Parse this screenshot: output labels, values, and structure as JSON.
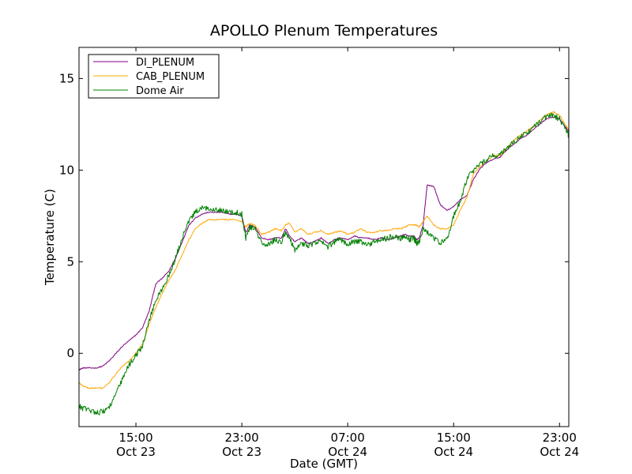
{
  "chart_data": {
    "type": "line",
    "title": "APOLLO Plenum Temperatures",
    "xlabel": "Date (GMT)",
    "ylabel": "Temperature (C)",
    "xlim": [
      10.7,
      47.7
    ],
    "ylim": [
      -4,
      16.7
    ],
    "yticks": [
      {
        "value": 0,
        "label": "0"
      },
      {
        "value": 5,
        "label": "5"
      },
      {
        "value": 10,
        "label": "10"
      },
      {
        "value": 15,
        "label": "15"
      }
    ],
    "xticks": [
      {
        "value": 15,
        "time": "15:00",
        "date": "Oct 23"
      },
      {
        "value": 23,
        "time": "23:00",
        "date": "Oct 23"
      },
      {
        "value": 31,
        "time": "07:00",
        "date": "Oct 24"
      },
      {
        "value": 39,
        "time": "15:00",
        "date": "Oct 24"
      },
      {
        "value": 47,
        "time": "23:00",
        "date": "Oct 24"
      }
    ],
    "legend_position": "top-left",
    "series": [
      {
        "name": "DI_PLENUM",
        "color": "#800080",
        "x": [
          10.7,
          11.0,
          11.5,
          12.0,
          12.5,
          13.0,
          13.5,
          14.0,
          14.5,
          15.0,
          15.5,
          16.0,
          16.5,
          17.0,
          17.5,
          18.0,
          18.5,
          19.0,
          19.5,
          20.0,
          20.5,
          21.0,
          21.5,
          22.0,
          22.5,
          23.0,
          23.3,
          23.6,
          24.0,
          24.5,
          25.0,
          25.5,
          26.0,
          26.3,
          26.6,
          27.0,
          27.5,
          28.0,
          28.5,
          29.0,
          29.5,
          30.0,
          30.5,
          31.0,
          31.5,
          32.0,
          32.5,
          33.0,
          33.5,
          34.0,
          34.5,
          35.0,
          35.3,
          35.6,
          36.0,
          36.2,
          36.4,
          36.7,
          37.0,
          37.5,
          38.0,
          38.5,
          39.0,
          39.5,
          40.0,
          40.5,
          41.0,
          41.5,
          42.0,
          42.5,
          43.0,
          43.5,
          44.0,
          44.5,
          45.0,
          45.5,
          46.0,
          46.5,
          47.0,
          47.5,
          47.7
        ],
        "y": [
          -0.9,
          -0.8,
          -0.8,
          -0.8,
          -0.7,
          -0.4,
          0.0,
          0.4,
          0.7,
          1.0,
          1.4,
          2.3,
          3.8,
          4.1,
          4.5,
          5.2,
          6.1,
          7.0,
          7.4,
          7.6,
          7.7,
          7.7,
          7.7,
          7.6,
          7.6,
          7.5,
          6.6,
          7.0,
          6.9,
          6.3,
          6.2,
          6.3,
          6.3,
          6.8,
          6.4,
          6.1,
          6.3,
          6.0,
          6.1,
          6.3,
          6.0,
          6.2,
          6.3,
          6.2,
          6.4,
          6.3,
          6.3,
          6.2,
          6.3,
          6.2,
          6.3,
          6.4,
          6.5,
          6.4,
          6.4,
          6.2,
          6.3,
          7.0,
          9.2,
          9.1,
          8.1,
          7.8,
          8.0,
          8.4,
          8.6,
          9.5,
          10.1,
          10.4,
          10.6,
          10.7,
          11.1,
          11.4,
          11.7,
          11.9,
          12.2,
          12.5,
          12.8,
          12.9,
          12.8,
          12.3,
          12.1
        ],
        "noise": 0.03
      },
      {
        "name": "CAB_PLENUM",
        "color": "#ffa500",
        "x": [
          10.7,
          11.0,
          11.5,
          12.0,
          12.5,
          13.0,
          13.5,
          14.0,
          14.5,
          15.0,
          15.5,
          16.0,
          16.5,
          17.0,
          17.5,
          18.0,
          18.5,
          19.0,
          19.5,
          20.0,
          20.5,
          21.0,
          21.5,
          22.0,
          22.5,
          23.0,
          23.3,
          23.6,
          24.0,
          24.5,
          25.0,
          25.5,
          26.0,
          26.3,
          26.6,
          27.0,
          27.5,
          28.0,
          28.5,
          29.0,
          29.5,
          30.0,
          30.5,
          31.0,
          31.5,
          32.0,
          32.5,
          33.0,
          33.5,
          34.0,
          34.5,
          35.0,
          35.3,
          35.6,
          36.0,
          36.2,
          36.4,
          36.7,
          37.0,
          37.5,
          38.0,
          38.5,
          39.0,
          39.5,
          40.0,
          40.5,
          41.0,
          41.5,
          42.0,
          42.5,
          43.0,
          43.5,
          44.0,
          44.5,
          45.0,
          45.5,
          46.0,
          46.5,
          47.0,
          47.5,
          47.7
        ],
        "y": [
          -1.6,
          -1.8,
          -1.9,
          -1.9,
          -1.9,
          -1.6,
          -1.1,
          -0.7,
          -0.4,
          0.0,
          0.5,
          1.6,
          2.5,
          3.3,
          4.0,
          4.6,
          5.4,
          6.2,
          6.8,
          7.1,
          7.3,
          7.3,
          7.3,
          7.3,
          7.3,
          7.2,
          6.9,
          7.1,
          7.0,
          6.5,
          6.6,
          6.8,
          6.7,
          7.0,
          7.1,
          6.6,
          6.8,
          6.5,
          6.6,
          6.7,
          6.5,
          6.6,
          6.7,
          6.5,
          6.6,
          6.8,
          6.6,
          6.6,
          6.7,
          6.7,
          6.8,
          6.8,
          6.9,
          7.0,
          7.0,
          7.0,
          6.9,
          7.2,
          7.5,
          7.0,
          6.8,
          6.8,
          7.0,
          7.8,
          8.5,
          9.8,
          10.2,
          10.5,
          10.8,
          10.8,
          11.2,
          11.6,
          11.9,
          12.1,
          12.4,
          12.7,
          13.0,
          13.2,
          13.0,
          12.4,
          12.2
        ],
        "noise": 0.035
      },
      {
        "name": "Dome Air",
        "color": "#008000",
        "x": [
          10.7,
          11.0,
          11.5,
          12.0,
          12.5,
          13.0,
          13.5,
          14.0,
          14.5,
          15.0,
          15.5,
          16.0,
          16.5,
          17.0,
          17.5,
          18.0,
          18.5,
          19.0,
          19.5,
          20.0,
          20.5,
          21.0,
          21.5,
          22.0,
          22.5,
          23.0,
          23.3,
          23.6,
          24.0,
          24.5,
          25.0,
          25.5,
          26.0,
          26.3,
          26.6,
          27.0,
          27.5,
          28.0,
          28.5,
          29.0,
          29.5,
          30.0,
          30.5,
          31.0,
          31.5,
          32.0,
          32.5,
          33.0,
          33.5,
          34.0,
          34.5,
          35.0,
          35.3,
          35.6,
          36.0,
          36.2,
          36.4,
          36.7,
          37.0,
          37.5,
          38.0,
          38.5,
          39.0,
          39.5,
          40.0,
          40.5,
          41.0,
          41.5,
          42.0,
          42.5,
          43.0,
          43.5,
          44.0,
          44.5,
          45.0,
          45.5,
          46.0,
          46.5,
          47.0,
          47.5,
          47.7
        ],
        "y": [
          -2.9,
          -3.0,
          -3.1,
          -3.2,
          -3.2,
          -2.9,
          -2.2,
          -1.4,
          -0.6,
          -0.1,
          0.4,
          1.8,
          2.9,
          3.5,
          4.3,
          5.2,
          6.3,
          7.2,
          7.7,
          7.9,
          7.9,
          7.9,
          7.8,
          7.7,
          7.7,
          7.6,
          6.3,
          6.9,
          6.8,
          6.0,
          5.9,
          6.2,
          6.1,
          6.6,
          6.3,
          5.6,
          6.0,
          5.9,
          6.0,
          6.1,
          5.8,
          6.1,
          6.2,
          6.0,
          6.1,
          6.1,
          5.9,
          6.1,
          6.2,
          6.3,
          6.4,
          6.3,
          6.4,
          6.2,
          6.3,
          6.0,
          6.1,
          6.8,
          6.6,
          6.3,
          6.0,
          6.2,
          7.5,
          8.3,
          9.5,
          10.0,
          10.3,
          10.6,
          10.8,
          10.8,
          11.2,
          11.5,
          11.8,
          12.0,
          12.3,
          12.6,
          12.9,
          13.0,
          12.8,
          12.2,
          11.8
        ],
        "noise": 0.16
      }
    ]
  }
}
